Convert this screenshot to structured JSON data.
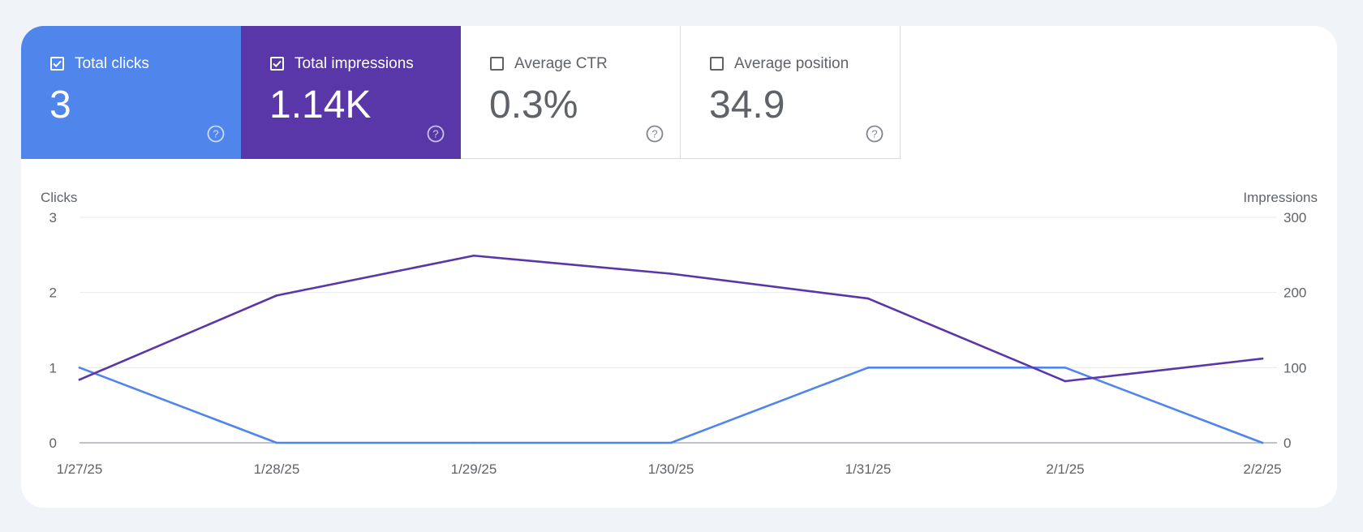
{
  "colors": {
    "clicks": "#5086ec",
    "impressions": "#5937a9",
    "grid": "#e8eaed",
    "baseline": "#9aa0a6",
    "text": "#5f6368"
  },
  "metrics": [
    {
      "id": "clicks",
      "label": "Total clicks",
      "value": "3",
      "checked": true,
      "color": "#5086ec",
      "help_icon": "help-circle-icon"
    },
    {
      "id": "impressions",
      "label": "Total impressions",
      "value": "1.14K",
      "checked": true,
      "color": "#5937a9",
      "help_icon": "help-circle-icon"
    },
    {
      "id": "ctr",
      "label": "Average CTR",
      "value": "0.3%",
      "checked": false,
      "color": "#ffffff",
      "help_icon": "help-circle-icon"
    },
    {
      "id": "position",
      "label": "Average position",
      "value": "34.9",
      "checked": false,
      "color": "#ffffff",
      "help_icon": "help-circle-icon"
    }
  ],
  "chart_data": {
    "type": "line",
    "categories": [
      "1/27/25",
      "1/28/25",
      "1/29/25",
      "1/30/25",
      "1/31/25",
      "2/1/25",
      "2/2/25"
    ],
    "y_left": {
      "label": "Clicks",
      "ylim": [
        0,
        3
      ],
      "ticks": [
        "0",
        "1",
        "2",
        "3"
      ]
    },
    "y_right": {
      "label": "Impressions",
      "ylim": [
        0,
        300
      ],
      "ticks": [
        "0",
        "100",
        "200",
        "300"
      ]
    },
    "grid": true,
    "series": [
      {
        "name": "Clicks",
        "axis": "left",
        "color": "#5086ec",
        "values": [
          1,
          0,
          0,
          0,
          1,
          1,
          0
        ]
      },
      {
        "name": "Impressions",
        "axis": "right",
        "color": "#5937a9",
        "values": [
          84,
          196,
          249,
          225,
          192,
          82,
          112
        ]
      }
    ]
  }
}
